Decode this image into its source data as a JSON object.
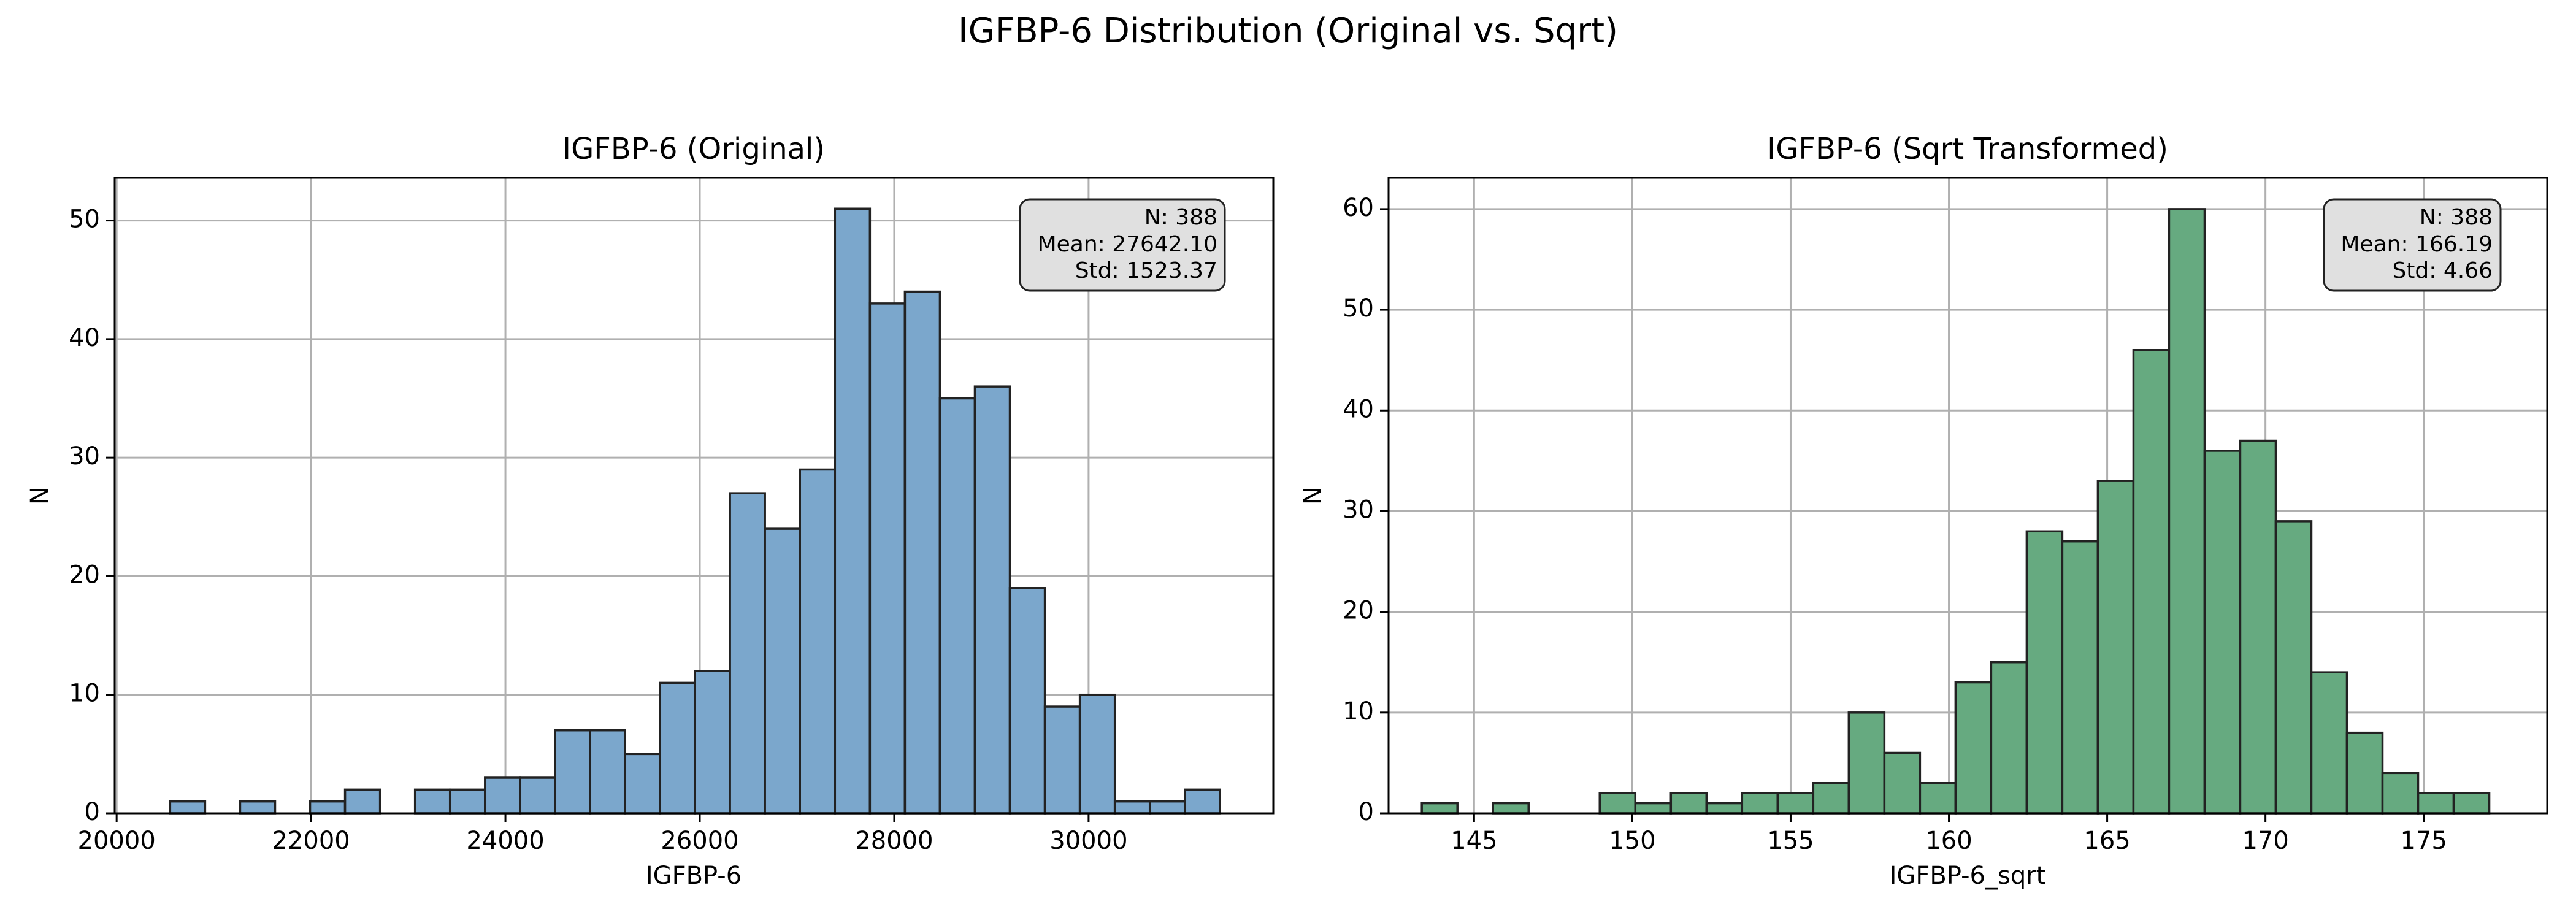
{
  "figure": {
    "suptitle": "IGFBP-6 Distribution (Original vs. Sqrt)"
  },
  "chart_data": [
    {
      "type": "bar",
      "subtype": "histogram",
      "title": "IGFBP-6 (Original)",
      "xlabel": "IGFBP-6",
      "ylabel": "N",
      "xlim": [
        19980,
        31900
      ],
      "ylim": [
        0,
        53.6
      ],
      "xticks": [
        20000,
        22000,
        24000,
        26000,
        28000,
        30000
      ],
      "yticks": [
        0,
        10,
        20,
        30,
        40,
        50
      ],
      "grid": true,
      "color": "#7ba7cc",
      "edge_color": "#222222",
      "bin_start": 20550,
      "bin_width": 360,
      "counts": [
        1,
        0,
        1,
        0,
        1,
        2,
        0,
        2,
        2,
        3,
        3,
        7,
        7,
        5,
        11,
        12,
        27,
        24,
        29,
        51,
        43,
        44,
        35,
        36,
        19,
        9,
        10,
        1,
        1,
        2
      ],
      "stats_box": {
        "n": "N: 388",
        "mean": "Mean: 27642.10",
        "std": "Std: 1523.37",
        "position": "top-right"
      }
    },
    {
      "type": "bar",
      "subtype": "histogram",
      "title": "IGFBP-6 (Sqrt Transformed)",
      "xlabel": "IGFBP-6_sqrt",
      "ylabel": "N",
      "xlim": [
        142.3,
        178.9
      ],
      "ylim": [
        0,
        63.1
      ],
      "xticks": [
        145,
        150,
        155,
        160,
        165,
        170,
        175
      ],
      "yticks": [
        0,
        10,
        20,
        30,
        40,
        50,
        60
      ],
      "grid": true,
      "color": "#66aa80",
      "edge_color": "#222222",
      "bin_start": 143.35,
      "bin_width": 1.124,
      "counts": [
        1,
        0,
        1,
        0,
        0,
        2,
        1,
        2,
        1,
        2,
        2,
        3,
        10,
        6,
        3,
        13,
        15,
        28,
        27,
        33,
        46,
        60,
        36,
        37,
        29,
        14,
        8,
        4,
        2,
        2
      ],
      "stats_box": {
        "n": "N: 388",
        "mean": "Mean: 166.19",
        "std": "Std: 4.66",
        "position": "top-right"
      }
    }
  ]
}
